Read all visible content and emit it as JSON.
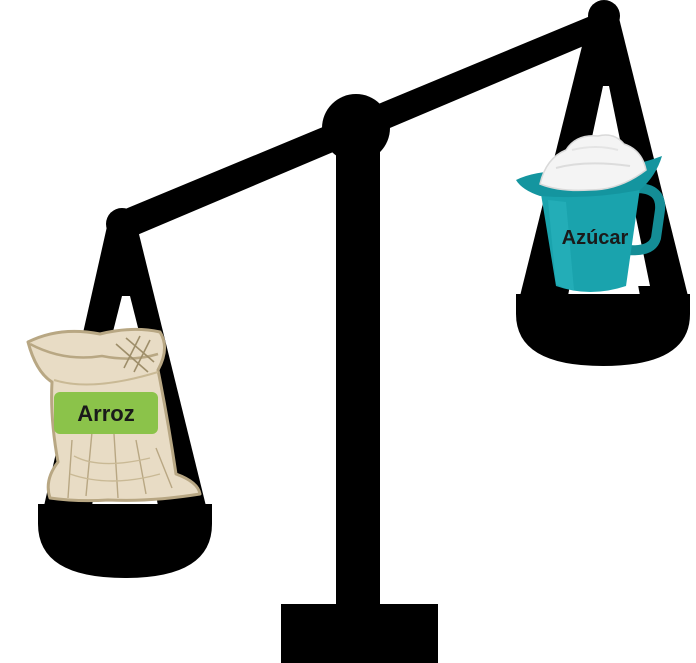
{
  "diagram": {
    "left_pan": {
      "item": "rice-sack",
      "label": "Arroz",
      "label_bg_color": "#8bc34a",
      "label_text_color": "#1a1a1a"
    },
    "right_pan": {
      "item": "sugar-cup",
      "label": "Azúcar",
      "label_text_color": "#1a1a1a",
      "cup_color": "#1aa3ad"
    },
    "scale_color": "#000000",
    "tilt": "left-down"
  }
}
